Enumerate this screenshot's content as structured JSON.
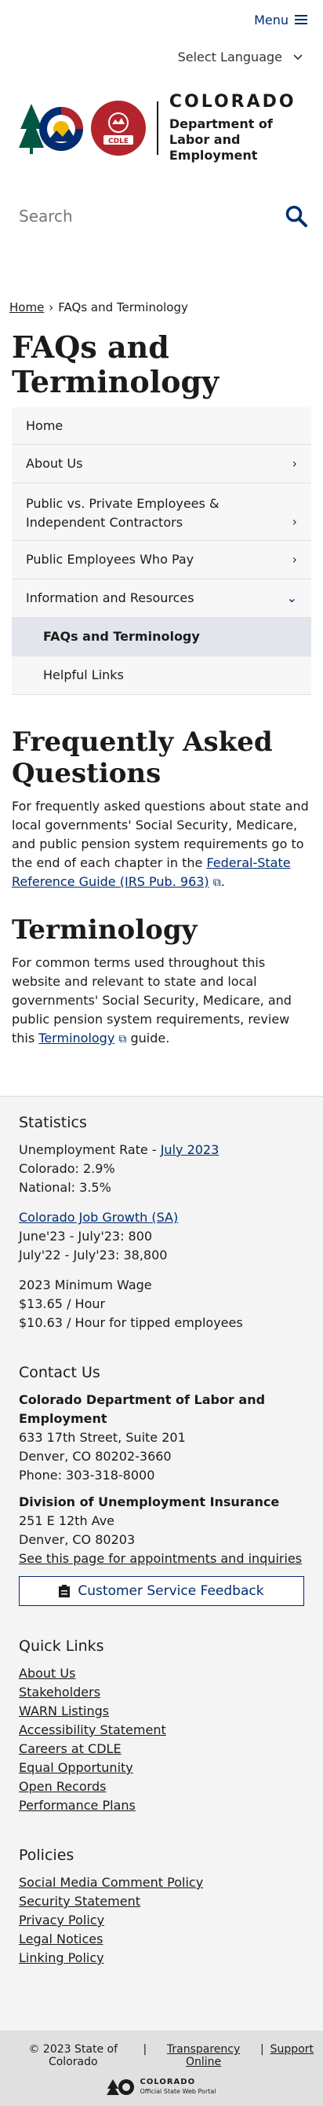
{
  "header": {
    "menu_label": "Menu",
    "language_label": "Select Language",
    "logo_colorado": "COLORADO",
    "logo_dept_line1": "Department of",
    "logo_dept_line2": "Labor and Employment",
    "cdle_badge": "CDLE",
    "search_placeholder": "Search"
  },
  "breadcrumb": {
    "home": "Home",
    "separator": "›",
    "current": "FAQs and Terminology"
  },
  "page_title": "FAQs and Terminology",
  "sidenav": [
    {
      "label": "Home",
      "chevron": ""
    },
    {
      "label": "About Us",
      "chevron": "›"
    },
    {
      "label": "Public vs. Private Employees & Independent Contractors",
      "chevron": "›"
    },
    {
      "label": "Public Employees Who Pay",
      "chevron": "›"
    },
    {
      "label": "Information and Resources",
      "chevron": "⌄"
    },
    {
      "label": "FAQs and Terminology",
      "chevron": ""
    },
    {
      "label": "Helpful Links",
      "chevron": ""
    }
  ],
  "faq": {
    "heading": "Frequently Asked Questions",
    "text_before": "For frequently asked questions about state and local governments' Social Security, Medicare, and public pension system requirements go to the end of each chapter in the ",
    "link": "Federal-State Reference Guide (IRS Pub. 963)",
    "text_after": "."
  },
  "terminology": {
    "heading": "Terminology",
    "text_before": "For common terms used throughout this website and relevant to state and local governments' Social Security, Medicare, and public pension system requirements, review this ",
    "link": "Terminology",
    "text_after": " guide."
  },
  "footer": {
    "statistics": {
      "heading": "Statistics",
      "unemployment_label": "Unemployment Rate - ",
      "unemployment_link": "July 2023",
      "colorado": "Colorado: 2.9%",
      "national": "National: 3.5%",
      "job_growth_link": "Colorado Job Growth (SA)",
      "june_july": "June'23 - July'23: 800",
      "july_july": "July'22 - July'23: 38,800",
      "min_wage_heading": "2023 Minimum Wage",
      "min_wage": "$13.65 / Hour",
      "tipped": "$10.63 / Hour for tipped employees"
    },
    "contact": {
      "heading": "Contact Us",
      "org1": "Colorado Department of Labor and Employment",
      "addr1": "633 17th Street, Suite 201",
      "city1": "Denver, CO  80202-3660",
      "phone1": "Phone: 303-318-8000",
      "org2": "Division of Unemployment Insurance",
      "addr2": "251 E 12th Ave",
      "city2": "Denver, CO  80203",
      "appointments_link": "See this page for appointments and inquiries"
    },
    "feedback_button": "Customer Service Feedback",
    "quick_links": {
      "heading": "Quick Links",
      "items": [
        "About Us",
        "Stakeholders",
        "WARN Listings",
        "Accessibility Statement",
        "Careers at CDLE",
        "Equal Opportunity",
        "Open Records",
        "Performance Plans"
      ]
    },
    "policies": {
      "heading": "Policies",
      "items": [
        "Social Media Comment Policy",
        "Security Statement",
        "Privacy Policy",
        "Legal Notices",
        "Linking Policy"
      ]
    }
  },
  "bottom": {
    "copyright": "© 2023 State of Colorado",
    "separator": "|",
    "transparency": "Transparency Online",
    "support": "Support",
    "portal_line1": "COLORADO",
    "portal_line2": "Official State Web Portal"
  }
}
